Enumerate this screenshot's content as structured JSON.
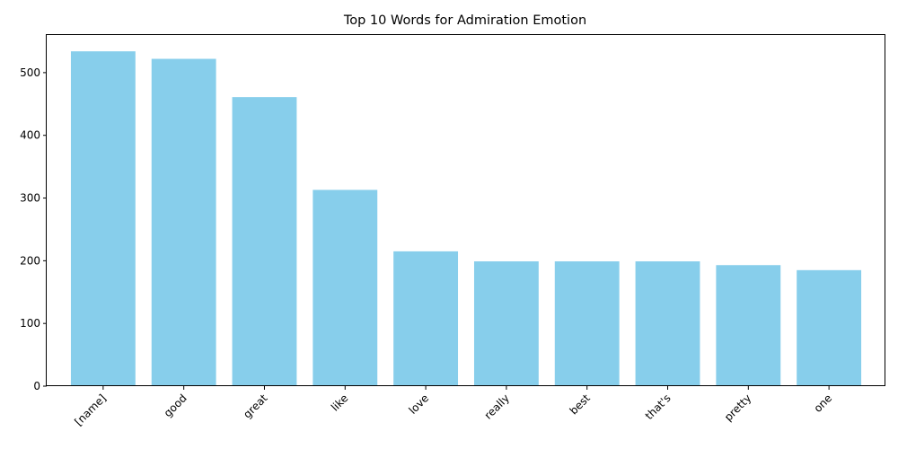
{
  "chart_data": {
    "type": "bar",
    "title": "Top 10 Words for Admiration Emotion",
    "xlabel": "",
    "ylabel": "",
    "categories": [
      "[name]",
      "good",
      "great",
      "like",
      "love",
      "really",
      "best",
      "that's",
      "pretty",
      "one"
    ],
    "values": [
      534,
      522,
      461,
      313,
      215,
      199,
      199,
      199,
      193,
      185
    ],
    "ylim": [
      0,
      560
    ],
    "yticks": [
      0,
      100,
      200,
      300,
      400,
      500
    ],
    "bar_color": "#87CEEB",
    "grid": false,
    "legend": "none"
  }
}
